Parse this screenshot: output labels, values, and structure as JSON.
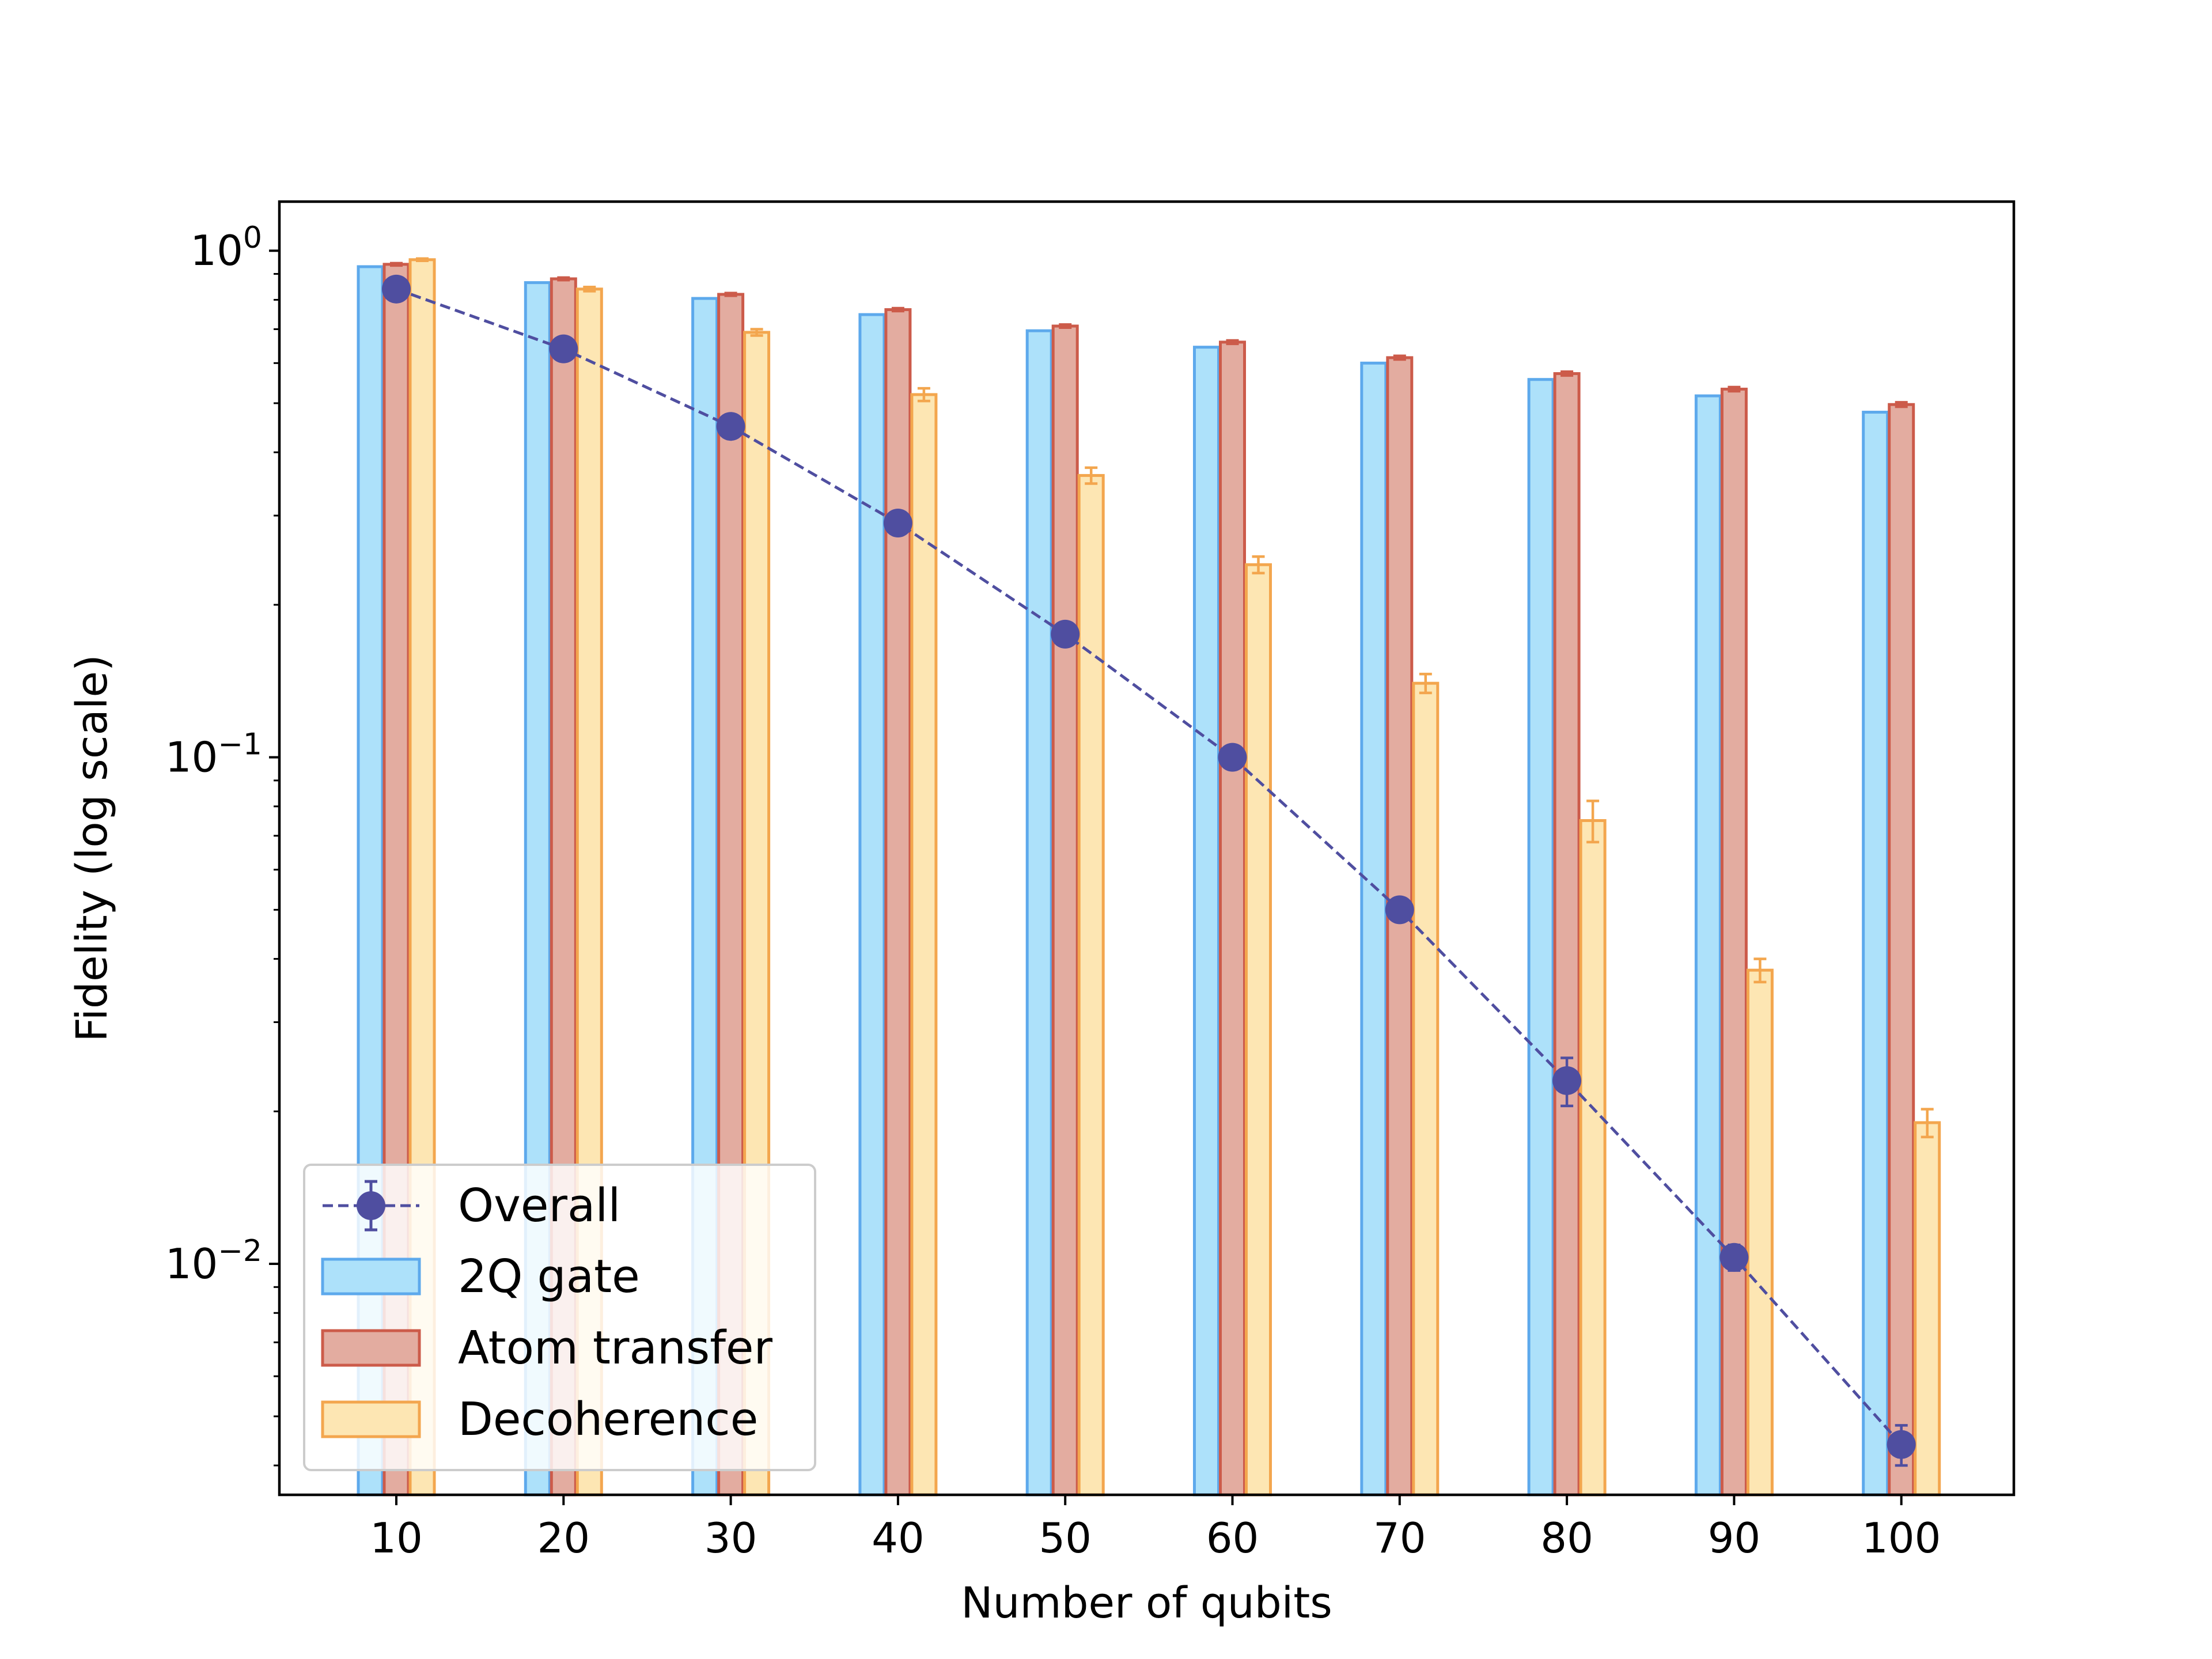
{
  "chart_data": {
    "type": "bar",
    "xlabel": "Number of qubits",
    "ylabel": "Fidelity (log scale)",
    "yscale": "log",
    "ylim": [
      0.0035,
      1.25
    ],
    "categories": [
      "10",
      "20",
      "30",
      "40",
      "50",
      "60",
      "70",
      "80",
      "90",
      "100"
    ],
    "y_ticks": [
      {
        "value": 1,
        "base": "10",
        "exp": "0"
      },
      {
        "value": 0.1,
        "base": "10",
        "exp": "−1"
      },
      {
        "value": 0.01,
        "base": "10",
        "exp": "−2"
      }
    ],
    "series": [
      {
        "name": "2Q gate",
        "kind": "bar",
        "fill": "#ade1fa",
        "edge": "#5da9ec",
        "values": [
          0.93,
          0.865,
          0.805,
          0.748,
          0.695,
          0.645,
          0.6,
          0.557,
          0.517,
          0.48
        ]
      },
      {
        "name": "Atom transfer",
        "kind": "bar",
        "fill": "#e3aca0",
        "edge": "#cc5b4a",
        "values": [
          0.94,
          0.88,
          0.82,
          0.765,
          0.71,
          0.66,
          0.615,
          0.572,
          0.533,
          0.497
        ],
        "errors": [
          0.005,
          0.005,
          0.005,
          0.005,
          0.005,
          0.005,
          0.005,
          0.005,
          0.005,
          0.005
        ]
      },
      {
        "name": "Decoherence",
        "kind": "bar",
        "fill": "#fde6b3",
        "edge": "#f3a64e",
        "values": [
          0.96,
          0.84,
          0.69,
          0.52,
          0.36,
          0.24,
          0.14,
          0.075,
          0.038,
          0.019
        ],
        "errors": [
          0.005,
          0.008,
          0.01,
          0.015,
          0.013,
          0.009,
          0.006,
          0.007,
          0.002,
          0.0012
        ]
      },
      {
        "name": "Overall",
        "kind": "line",
        "color": "#4f4ea0",
        "style": "dashed, circle markers",
        "values": [
          0.84,
          0.64,
          0.45,
          0.29,
          0.175,
          0.1,
          0.05,
          0.023,
          0.0103,
          0.0044
        ],
        "errors": [
          0,
          0,
          0,
          0,
          0,
          0,
          0,
          0.0025,
          0.0006,
          0.0004
        ]
      }
    ],
    "legend": {
      "position": "lower-left",
      "entries": [
        "Overall",
        "2Q gate",
        "Atom transfer",
        "Decoherence"
      ]
    },
    "grid": false
  }
}
